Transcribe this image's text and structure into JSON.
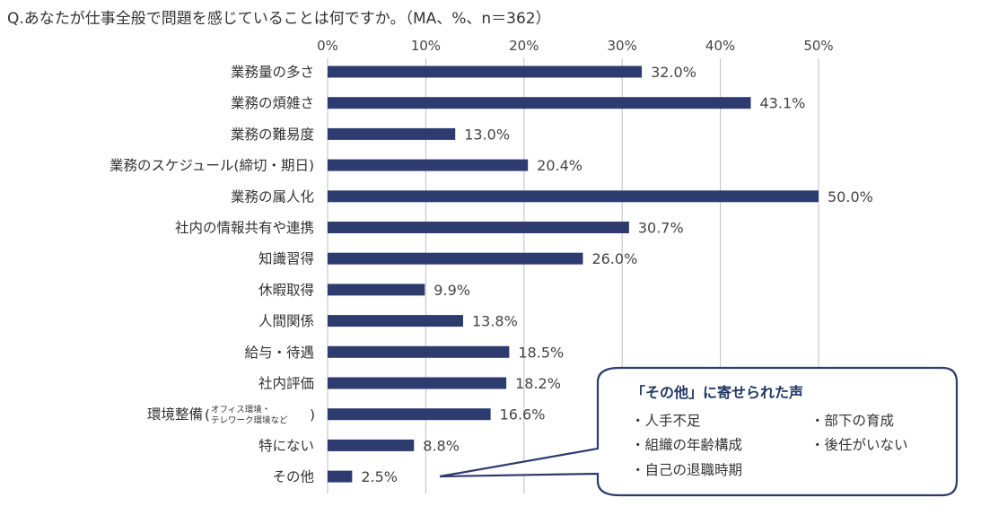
{
  "question": "Q.あなたが仕事全般で問題を感じていることは何ですか。（MA、%、n＝362）",
  "colors": {
    "bar": "#2e3b6e",
    "grid": "#bfbfbf",
    "callout_border": "#2e3b6e"
  },
  "chart_data": {
    "type": "bar",
    "orientation": "horizontal",
    "title": "Q.あなたが仕事全般で問題を感じていることは何ですか。（MA、%、n＝362）",
    "xlim": [
      0,
      50
    ],
    "ticks": [
      "0%",
      "10%",
      "20%",
      "30%",
      "40%",
      "50%"
    ],
    "tick_values": [
      0,
      10,
      20,
      30,
      40,
      50
    ],
    "categories": [
      "業務量の多さ",
      "業務の煩雑さ",
      "業務の難易度",
      "業務のスケジュール(締切・期日)",
      "業務の属人化",
      "社内の情報共有や連携",
      "知識習得",
      "休暇取得",
      "人間関係",
      "給与・待遇",
      "社内評価",
      "環境整備",
      "特にない",
      "その他"
    ],
    "category_notes": {
      "環境整備": [
        "オフィス環境・",
        "テレワーク環境など"
      ]
    },
    "values": [
      32.0,
      43.1,
      13.0,
      20.4,
      50.0,
      30.7,
      26.0,
      9.9,
      13.8,
      18.5,
      18.2,
      16.6,
      8.8,
      2.5
    ],
    "value_labels": [
      "32.0%",
      "43.1%",
      "13.0%",
      "20.4%",
      "50.0%",
      "30.7%",
      "26.0%",
      "9.9%",
      "13.8%",
      "18.5%",
      "18.2%",
      "16.6%",
      "8.8%",
      "2.5%"
    ],
    "grid": true
  },
  "callout": {
    "title": "「その他」に寄せられた声",
    "items": [
      "・人手不足",
      "・部下の育成",
      "・組織の年齢構成",
      "・後任がいない",
      "・自己の退職時期"
    ]
  }
}
